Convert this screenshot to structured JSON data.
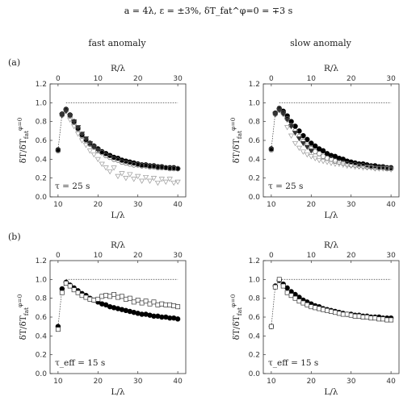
{
  "figure": {
    "title": "a = 4λ, ε = ±3%, δT_fat^φ=0 = ∓3 s",
    "column_headers": [
      "fast anomaly",
      "slow anomaly"
    ],
    "row_labels": [
      "(a)",
      "(b)"
    ]
  },
  "chart_data": [
    {
      "id": "a-fast",
      "type": "scatter",
      "xlabel": "L/λ",
      "top_xlabel": "R/λ",
      "ylabel": "δT/δT_fat^φ=0",
      "xlim": [
        8,
        42
      ],
      "ylim": [
        0,
        1.2
      ],
      "xticks": [
        10,
        20,
        30,
        40
      ],
      "top_xticks": [
        0,
        10,
        20,
        30
      ],
      "yticks": [
        0,
        0.2,
        0.4,
        0.6,
        0.8,
        1.0,
        1.2
      ],
      "annotation": "τ = 25 s",
      "reference_line": {
        "x": [
          12,
          40
        ],
        "y": 1.0
      },
      "series": [
        {
          "marker": "filled-circle",
          "color": "#000000",
          "x": [
            10,
            11,
            12,
            13,
            14,
            15,
            16,
            17,
            18,
            19,
            20,
            21,
            22,
            23,
            24,
            25,
            26,
            27,
            28,
            29,
            30,
            31,
            32,
            33,
            34,
            35,
            36,
            37,
            38,
            39,
            40
          ],
          "y": [
            0.5,
            0.88,
            0.93,
            0.87,
            0.8,
            0.73,
            0.66,
            0.61,
            0.57,
            0.54,
            0.51,
            0.48,
            0.46,
            0.44,
            0.42,
            0.41,
            0.39,
            0.38,
            0.37,
            0.36,
            0.35,
            0.34,
            0.34,
            0.33,
            0.33,
            0.32,
            0.32,
            0.31,
            0.31,
            0.31,
            0.3
          ]
        },
        {
          "marker": "open-circle",
          "color": "#666666",
          "x": [
            10,
            11,
            12,
            13,
            14,
            15,
            16,
            17,
            18,
            19,
            20,
            21,
            22,
            23,
            24,
            25,
            26,
            27,
            28,
            29,
            30,
            31,
            32,
            33,
            34,
            35,
            36,
            37,
            38,
            39,
            40
          ],
          "y": [
            0.49,
            0.87,
            0.92,
            0.86,
            0.79,
            0.72,
            0.65,
            0.6,
            0.56,
            0.53,
            0.49,
            0.47,
            0.44,
            0.42,
            0.4,
            0.39,
            0.37,
            0.36,
            0.35,
            0.34,
            0.34,
            0.33,
            0.33,
            0.32,
            0.32,
            0.31,
            0.31,
            0.31,
            0.3,
            0.3,
            0.3
          ]
        },
        {
          "marker": "filled-triangle-down",
          "color": "#333333",
          "x": [
            11,
            12,
            13,
            14,
            15,
            16,
            17,
            18,
            19,
            20
          ],
          "y": [
            0.87,
            0.91,
            0.86,
            0.8,
            0.74,
            0.67,
            0.62,
            0.57,
            0.53,
            0.5
          ]
        },
        {
          "marker": "open-triangle-down",
          "color": "#9a9a9a",
          "x": [
            13,
            14,
            15,
            16,
            17,
            18,
            19,
            20,
            21,
            22,
            23,
            24,
            25,
            26,
            27,
            28,
            29,
            30,
            31,
            32,
            33,
            34,
            35,
            36,
            37,
            38,
            39,
            40
          ],
          "y": [
            0.82,
            0.75,
            0.67,
            0.6,
            0.55,
            0.49,
            0.45,
            0.4,
            0.35,
            0.31,
            0.27,
            0.31,
            0.22,
            0.25,
            0.2,
            0.24,
            0.19,
            0.22,
            0.17,
            0.21,
            0.17,
            0.2,
            0.15,
            0.19,
            0.16,
            0.19,
            0.15,
            0.16
          ]
        }
      ]
    },
    {
      "id": "a-slow",
      "type": "scatter",
      "xlabel": "L/λ",
      "top_xlabel": "R/λ",
      "ylabel": "δT/δT_fat^φ=0",
      "xlim": [
        8,
        42
      ],
      "ylim": [
        0,
        1.2
      ],
      "xticks": [
        10,
        20,
        30,
        40
      ],
      "top_xticks": [
        0,
        10,
        20,
        30
      ],
      "yticks": [
        0,
        0.2,
        0.4,
        0.6,
        0.8,
        1.0,
        1.2
      ],
      "annotation": "τ = 25 s",
      "reference_line": {
        "x": [
          12,
          40
        ],
        "y": 1.0
      },
      "series": [
        {
          "marker": "filled-circle",
          "color": "#000000",
          "x": [
            10,
            11,
            12,
            13,
            14,
            15,
            16,
            17,
            18,
            19,
            20,
            21,
            22,
            23,
            24,
            25,
            26,
            27,
            28,
            29,
            30,
            31,
            32,
            33,
            34,
            35,
            36,
            37,
            38,
            39,
            40
          ],
          "y": [
            0.51,
            0.89,
            0.94,
            0.91,
            0.86,
            0.8,
            0.75,
            0.7,
            0.65,
            0.61,
            0.57,
            0.54,
            0.51,
            0.49,
            0.46,
            0.44,
            0.43,
            0.41,
            0.4,
            0.38,
            0.37,
            0.36,
            0.35,
            0.35,
            0.34,
            0.33,
            0.33,
            0.32,
            0.32,
            0.31,
            0.31
          ]
        },
        {
          "marker": "open-circle",
          "color": "#666666",
          "x": [
            10,
            11,
            12,
            13,
            14,
            15,
            16,
            17,
            18,
            19,
            20,
            21,
            22,
            23,
            24,
            25,
            26,
            27,
            28,
            29,
            30,
            31,
            32,
            33,
            34,
            35,
            36,
            37,
            38,
            39,
            40
          ],
          "y": [
            0.5,
            0.88,
            0.93,
            0.89,
            0.83,
            0.76,
            0.7,
            0.64,
            0.59,
            0.55,
            0.51,
            0.48,
            0.46,
            0.43,
            0.41,
            0.4,
            0.38,
            0.37,
            0.36,
            0.35,
            0.34,
            0.34,
            0.33,
            0.33,
            0.32,
            0.32,
            0.31,
            0.31,
            0.31,
            0.3,
            0.3
          ]
        },
        {
          "marker": "filled-triangle-down",
          "color": "#333333",
          "x": [
            11,
            12,
            13,
            14,
            15,
            16,
            17,
            18,
            19,
            20
          ],
          "y": [
            0.88,
            0.92,
            0.88,
            0.82,
            0.75,
            0.68,
            0.62,
            0.57,
            0.53,
            0.49
          ]
        },
        {
          "marker": "open-triangle-down",
          "color": "#9a9a9a",
          "x": [
            14,
            15,
            16,
            17,
            18,
            19,
            20,
            21,
            22,
            23,
            24,
            25,
            26,
            27,
            28,
            29,
            30,
            31,
            32,
            33,
            34,
            35,
            36,
            37,
            38,
            39,
            40
          ],
          "y": [
            0.74,
            0.65,
            0.57,
            0.52,
            0.48,
            0.45,
            0.43,
            0.41,
            0.39,
            0.38,
            0.37,
            0.36,
            0.35,
            0.35,
            0.34,
            0.33,
            0.33,
            0.32,
            0.32,
            0.31,
            0.31,
            0.31,
            0.3,
            0.3,
            0.3,
            0.3,
            0.29
          ]
        }
      ]
    },
    {
      "id": "b-fast",
      "type": "scatter",
      "xlabel": "L/λ",
      "top_xlabel": "R/λ",
      "ylabel": "δT/δT_fat^φ=0",
      "xlim": [
        8,
        42
      ],
      "ylim": [
        0,
        1.2
      ],
      "xticks": [
        10,
        20,
        30,
        40
      ],
      "top_xticks": [
        0,
        10,
        20,
        30
      ],
      "yticks": [
        0,
        0.2,
        0.4,
        0.6,
        0.8,
        1.0,
        1.2
      ],
      "annotation": "τ_eff = 15 s",
      "reference_line": {
        "x": [
          12,
          40
        ],
        "y": 1.0
      },
      "series": [
        {
          "marker": "filled-circle",
          "color": "#000000",
          "x": [
            10,
            11,
            12,
            13,
            14,
            15,
            16,
            17,
            18,
            19,
            20,
            21,
            22,
            23,
            24,
            25,
            26,
            27,
            28,
            29,
            30,
            31,
            32,
            33,
            34,
            35,
            36,
            37,
            38,
            39,
            40
          ],
          "y": [
            0.5,
            0.9,
            0.97,
            0.94,
            0.91,
            0.88,
            0.85,
            0.83,
            0.8,
            0.78,
            0.76,
            0.74,
            0.73,
            0.71,
            0.7,
            0.69,
            0.68,
            0.67,
            0.66,
            0.65,
            0.64,
            0.63,
            0.63,
            0.62,
            0.61,
            0.61,
            0.6,
            0.6,
            0.59,
            0.59,
            0.58
          ]
        },
        {
          "marker": "open-square",
          "color": "#333333",
          "x": [
            10,
            11,
            12,
            13,
            14,
            15,
            16,
            17,
            18,
            19,
            20,
            21,
            22,
            23,
            24,
            25,
            26,
            27,
            28,
            29,
            30,
            31,
            32,
            33,
            34,
            35,
            36,
            37,
            38,
            39,
            40
          ],
          "y": [
            0.47,
            0.86,
            0.96,
            0.93,
            0.89,
            0.86,
            0.83,
            0.81,
            0.79,
            0.78,
            0.79,
            0.82,
            0.83,
            0.82,
            0.84,
            0.81,
            0.82,
            0.79,
            0.8,
            0.76,
            0.78,
            0.75,
            0.77,
            0.74,
            0.76,
            0.73,
            0.74,
            0.73,
            0.73,
            0.72,
            0.71
          ]
        }
      ]
    },
    {
      "id": "b-slow",
      "type": "scatter",
      "xlabel": "L/λ",
      "top_xlabel": "R/λ",
      "ylabel": "δT/δT_fat^φ=0",
      "xlim": [
        8,
        42
      ],
      "ylim": [
        0,
        1.2
      ],
      "xticks": [
        10,
        20,
        30,
        40
      ],
      "top_xticks": [
        0,
        10,
        20,
        30
      ],
      "yticks": [
        0,
        0.2,
        0.4,
        0.6,
        0.8,
        1.0,
        1.2
      ],
      "annotation": "τ_eff = 15 s",
      "reference_line": {
        "x": [
          12,
          40
        ],
        "y": 1.0
      },
      "series": [
        {
          "marker": "filled-circle",
          "color": "#000000",
          "x": [
            10,
            11,
            12,
            13,
            14,
            15,
            16,
            17,
            18,
            19,
            20,
            21,
            22,
            23,
            24,
            25,
            26,
            27,
            28,
            29,
            30,
            31,
            32,
            33,
            34,
            35,
            36,
            37,
            38,
            39,
            40
          ],
          "y": [
            0.5,
            0.93,
            0.99,
            0.95,
            0.91,
            0.87,
            0.84,
            0.81,
            0.78,
            0.76,
            0.74,
            0.72,
            0.71,
            0.69,
            0.68,
            0.67,
            0.66,
            0.65,
            0.64,
            0.63,
            0.63,
            0.62,
            0.62,
            0.61,
            0.61,
            0.6,
            0.6,
            0.6,
            0.59,
            0.59,
            0.59
          ]
        },
        {
          "marker": "open-square",
          "color": "#333333",
          "x": [
            10,
            11,
            12,
            13,
            14,
            15,
            16,
            17,
            18,
            19,
            20,
            21,
            22,
            23,
            24,
            25,
            26,
            27,
            28,
            29,
            30,
            31,
            32,
            33,
            34,
            35,
            36,
            37,
            38,
            39,
            40
          ],
          "y": [
            0.5,
            0.92,
            1.0,
            0.93,
            0.86,
            0.83,
            0.8,
            0.77,
            0.75,
            0.73,
            0.71,
            0.7,
            0.69,
            0.68,
            0.67,
            0.66,
            0.65,
            0.64,
            0.63,
            0.63,
            0.62,
            0.61,
            0.61,
            0.6,
            0.6,
            0.59,
            0.59,
            0.58,
            0.58,
            0.57,
            0.57
          ]
        }
      ]
    }
  ]
}
